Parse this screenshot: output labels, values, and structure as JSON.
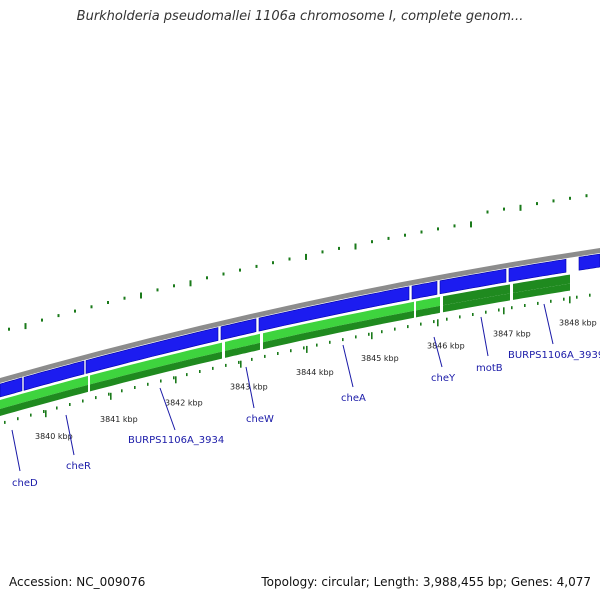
{
  "header": {
    "title": "Burkholderia pseudomallei 1106a chromosome I, complete genom..."
  },
  "footer": {
    "accession": "Accession: NC_009076",
    "summary": "Topology: circular; Length: 3,988,455 bp; Genes: 4,077"
  },
  "kbp_ticks": [
    "3840 kbp",
    "3841 kbp",
    "3842 kbp",
    "3843 kbp",
    "3844 kbp",
    "3845 kbp",
    "3846 kbp",
    "3847 kbp",
    "3848 kbp"
  ],
  "genes": [
    {
      "label": "cheD"
    },
    {
      "label": "cheR"
    },
    {
      "label": "BURPS1106A_3934"
    },
    {
      "label": "cheW"
    },
    {
      "label": "cheA"
    },
    {
      "label": "cheY"
    },
    {
      "label": "motB"
    },
    {
      "label": "BURPS1106A_3939"
    }
  ],
  "colors": {
    "backbone": "#8c8c8c",
    "forward_gene": "#1c1cf0",
    "forward_gene_dark": "#0000a8",
    "cds_light": "#3ed43e",
    "cds_dark": "#1f8a1f",
    "gc_ticks": "#1a7a1a",
    "label_line": "#1a1aa8"
  }
}
